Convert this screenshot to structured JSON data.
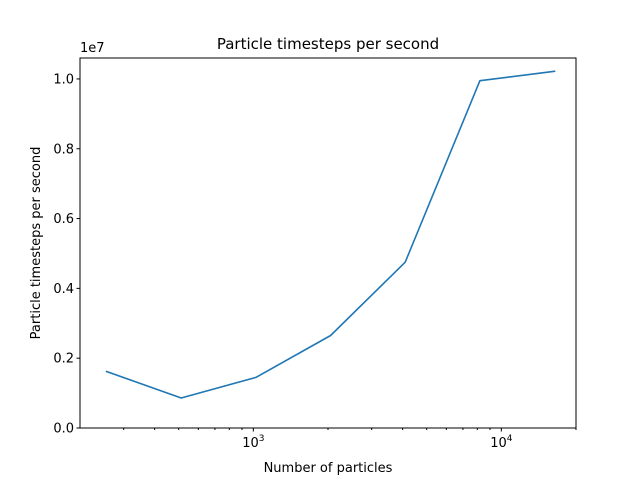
{
  "chart_data": {
    "type": "line",
    "title": "Particle timesteps per second",
    "xlabel": "Number of particles",
    "ylabel": "Particle timesteps per second",
    "x_scale": "log",
    "xlim": [
      200,
      20000
    ],
    "ylim": [
      0,
      10600000
    ],
    "y_offset_label": "1e7",
    "y_ticks": [
      0,
      2000000,
      4000000,
      6000000,
      8000000,
      10000000
    ],
    "y_tick_labels": [
      "0.0",
      "0.2",
      "0.4",
      "0.6",
      "0.8",
      "1.0"
    ],
    "x_major_ticks": [
      1000,
      10000
    ],
    "x_major_tick_labels": [
      {
        "base": "10",
        "exp": "3"
      },
      {
        "base": "10",
        "exp": "4"
      }
    ],
    "x_minor_ticks": [
      300,
      400,
      500,
      600,
      700,
      800,
      900,
      2000,
      3000,
      4000,
      5000,
      6000,
      7000,
      8000,
      9000,
      20000
    ],
    "grid": false,
    "series": [
      {
        "color": "#1f77b4",
        "x": [
          256,
          512,
          1024,
          2048,
          4096,
          8192,
          16384
        ],
        "y": [
          1620000,
          860000,
          1450000,
          2650000,
          4750000,
          9950000,
          10220000
        ]
      }
    ]
  }
}
